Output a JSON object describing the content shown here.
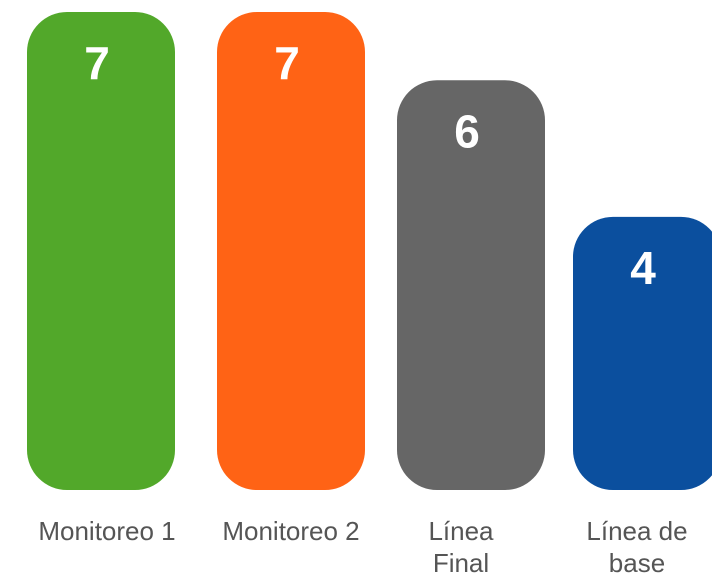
{
  "chart_data": {
    "type": "bar",
    "categories": [
      "Monitoreo 1",
      "Monitoreo 2",
      "Línea Final",
      "Línea de base"
    ],
    "values": [
      7,
      7,
      6,
      4
    ],
    "colors": [
      "#52a82a",
      "#ff6315",
      "#666666",
      "#0b4f9e"
    ],
    "ylim": [
      0,
      7
    ]
  }
}
